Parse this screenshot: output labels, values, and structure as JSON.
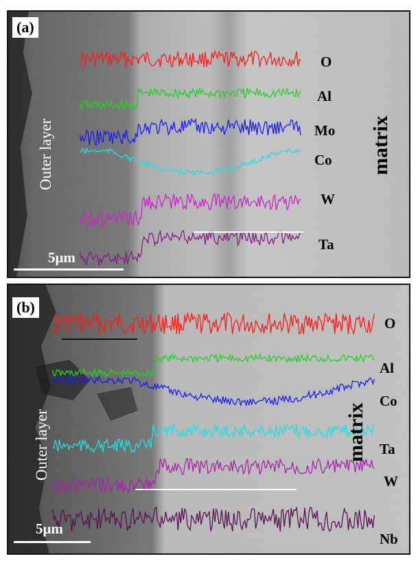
{
  "panel_a": {
    "tag": "(a)",
    "outer_layer": "Outer layer",
    "matrix": "matrix",
    "scale": "5μm",
    "elements": [
      "O",
      "Al",
      "Mo",
      "Co",
      "W",
      "Ta"
    ],
    "colors": [
      "#ff1a1a",
      "#22d322",
      "#1a1aff",
      "#1fe0e6",
      "#cc22cc",
      "#8a1a8a"
    ]
  },
  "panel_b": {
    "tag": "(b)",
    "outer_layer": "Outer layer",
    "matrix": "matrix",
    "scale": "5μm",
    "elements": [
      "O",
      "Al",
      "Co",
      "Ta",
      "W",
      "Nb"
    ],
    "colors": [
      "#ff1a1a",
      "#22d322",
      "#1a1aff",
      "#1fe0e6",
      "#aa22aa",
      "#5a1055"
    ]
  }
}
